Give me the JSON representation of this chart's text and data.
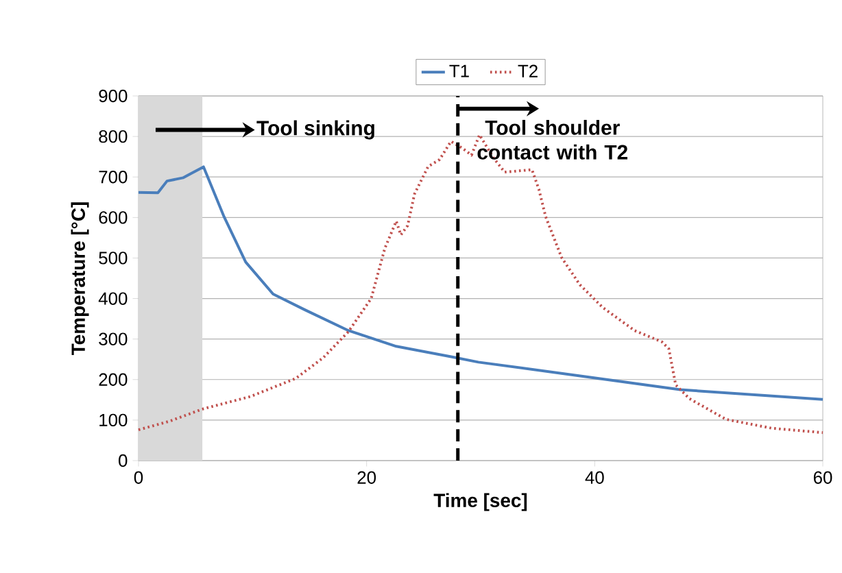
{
  "chart_data": {
    "type": "line",
    "xlabel": "Time [sec]",
    "ylabel": "Temperature [°C]",
    "xlim": [
      0,
      60
    ],
    "xticks": [
      0,
      20,
      40,
      60
    ],
    "ylim": [
      0,
      900
    ],
    "yticks": [
      0,
      100,
      200,
      300,
      400,
      500,
      600,
      700,
      800,
      900
    ],
    "grid": "y",
    "legend": "top",
    "marker": "none",
    "series": [
      {
        "name": "T1",
        "color": "#4a7ebb",
        "line_style": "solid",
        "x": [
          0,
          1.7,
          2.5,
          3.9,
          5.7,
          7.5,
          9.4,
          11.8,
          14.6,
          18.4,
          22.6,
          27.5,
          29.8,
          39.5,
          47.5,
          60
        ],
        "values": [
          662,
          661,
          690,
          698,
          725,
          602,
          490,
          411,
          372,
          321,
          282,
          256,
          243,
          206,
          175,
          151
        ]
      },
      {
        "name": "T2",
        "color": "#c0504d",
        "line_style": "dotted",
        "x": [
          0,
          2.7,
          5.7,
          9.8,
          13.8,
          16.2,
          18.4,
          20.4,
          21.6,
          22.6,
          23.0,
          23.6,
          24.2,
          25.4,
          26.4,
          27.4,
          28.4,
          29.2,
          29.9,
          31.1,
          32.1,
          34.5,
          35.1,
          35.7,
          37.1,
          38.7,
          40.7,
          43.5,
          45.9,
          46.5,
          47.1,
          48.3,
          51.5,
          55.5,
          60
        ],
        "values": [
          76,
          97,
          128,
          158,
          203,
          254,
          318,
          400,
          524,
          591,
          557,
          580,
          658,
          726,
          743,
          788,
          771,
          754,
          804,
          748,
          712,
          718,
          670,
          602,
          501,
          434,
          378,
          321,
          293,
          276,
          187,
          153,
          102,
          80,
          69
        ]
      }
    ],
    "bands": [
      {
        "axis": "x",
        "from": 0,
        "to": 5.6,
        "color": "#d9d9d9"
      }
    ],
    "ref_lines": [
      {
        "axis": "x",
        "value": 28,
        "color": "#000000",
        "line_style": "dashed"
      }
    ],
    "annotations": [
      "Tool sinking",
      "Tool shoulder contact with T2"
    ]
  }
}
